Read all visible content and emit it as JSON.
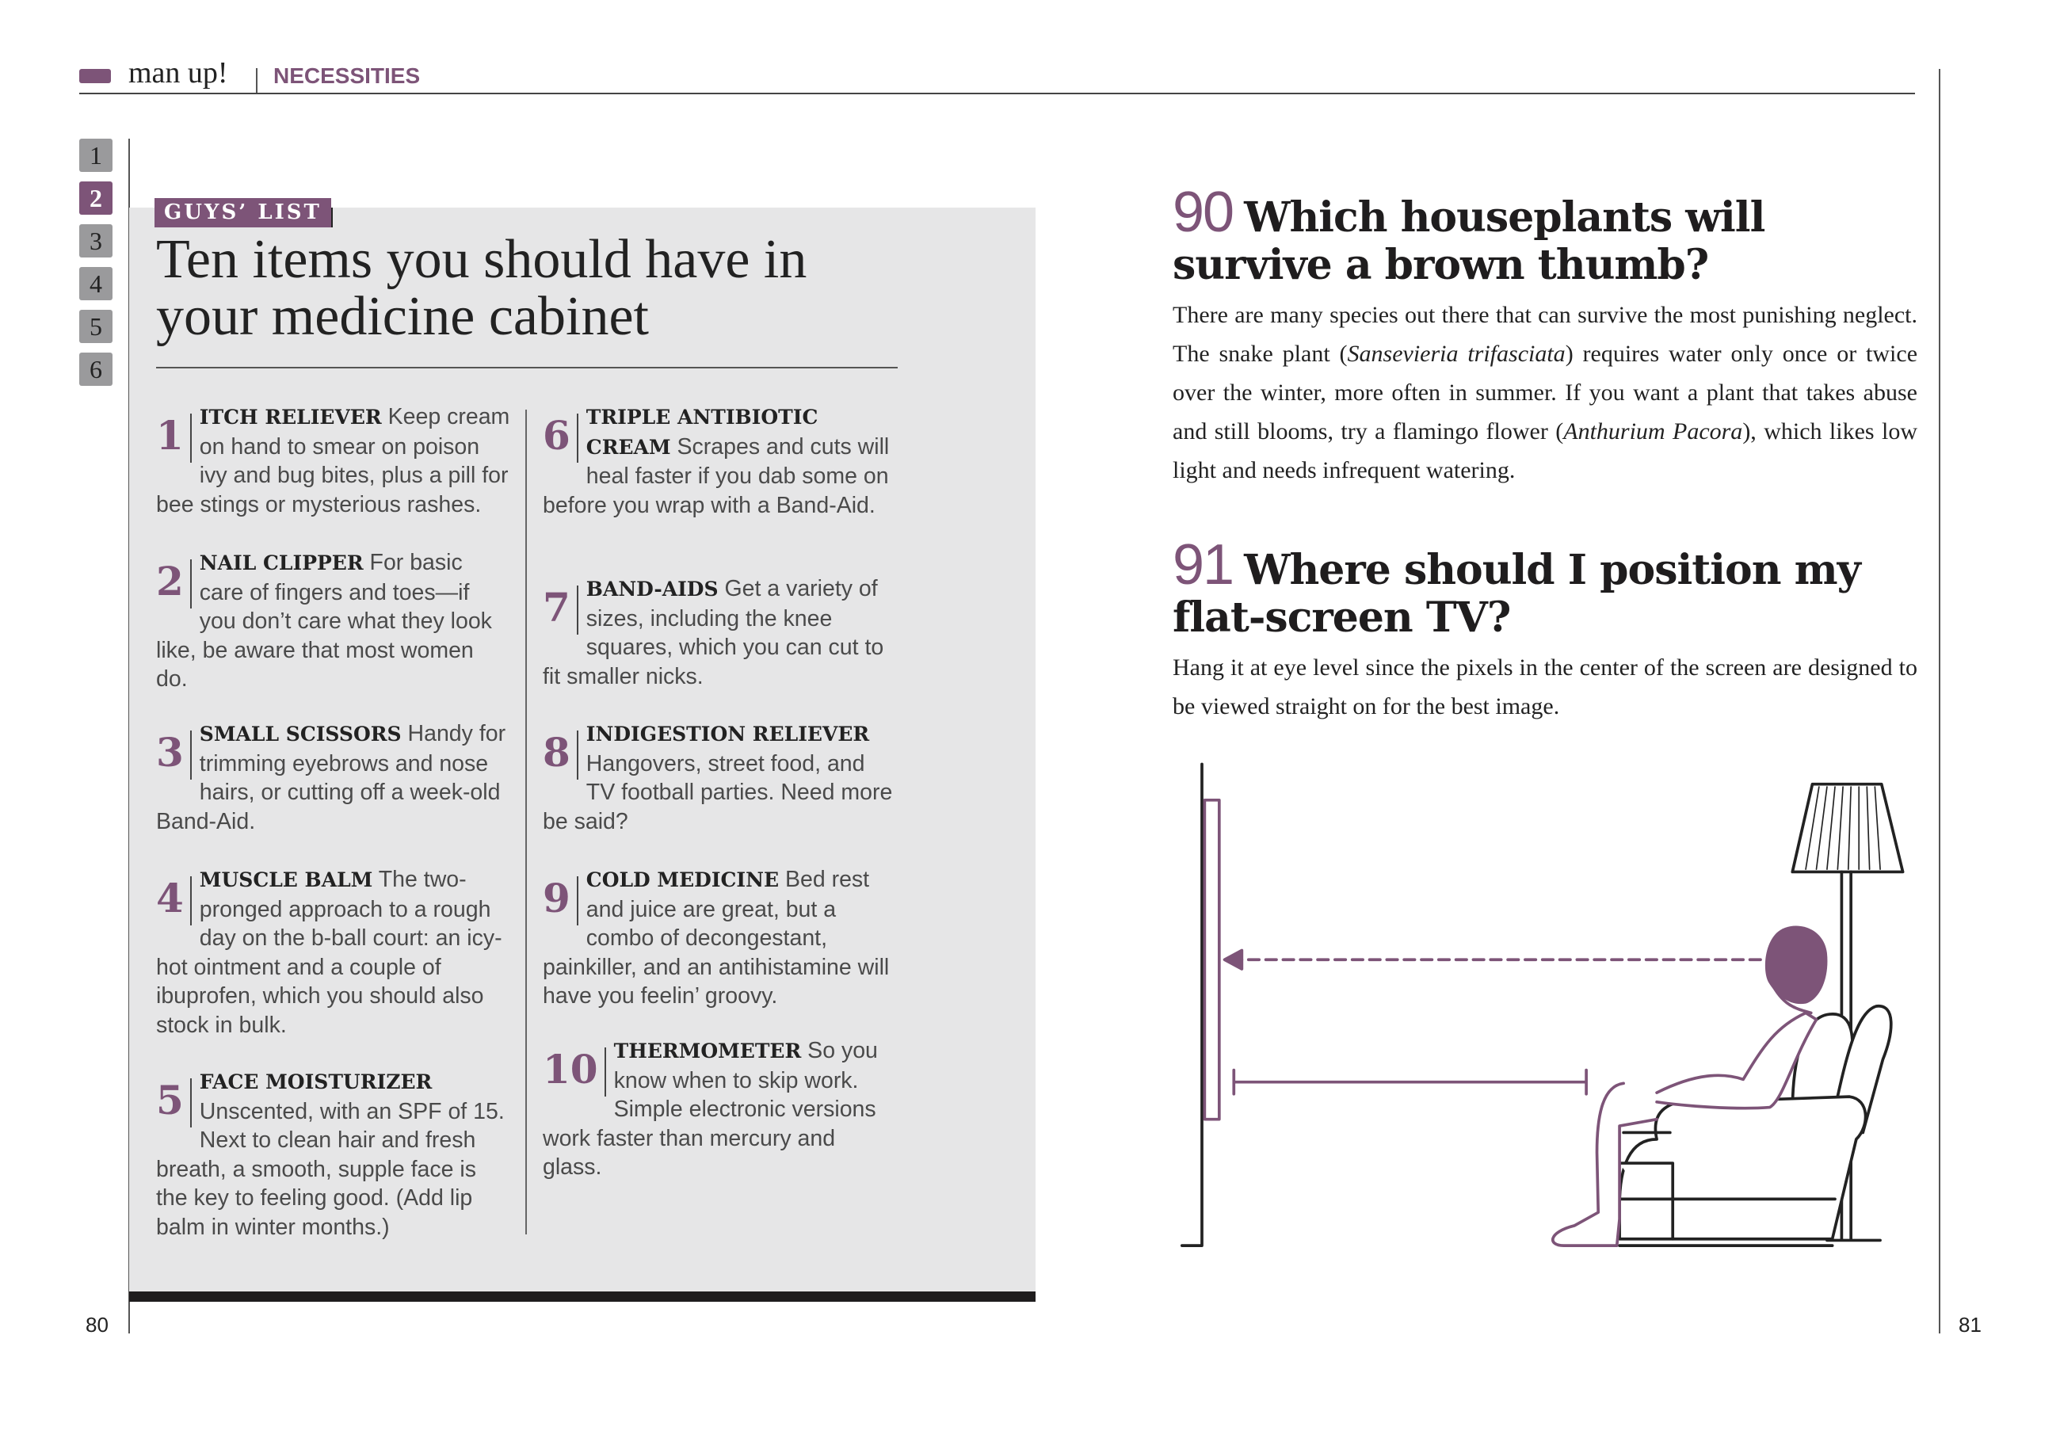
{
  "header": {
    "brand": "man up!",
    "section": "NECESSITIES",
    "accent": "#7d5478"
  },
  "tabs": [
    {
      "label": "1"
    },
    {
      "label": "2",
      "active": true
    },
    {
      "label": "3"
    },
    {
      "label": "4"
    },
    {
      "label": "5"
    },
    {
      "label": "6"
    }
  ],
  "left_page": {
    "tag": "GUYS’ LIST",
    "title": "Ten items you should have in your medicine cabinet",
    "items": [
      {
        "num": "1",
        "label": "ITCH RELIEVER",
        "text": " Keep cream on hand to smear on poison ivy and bug bites, plus a pill for bee stings or mysterious rashes."
      },
      {
        "num": "2",
        "label": "NAIL CLIPPER",
        "text": " For basic care of fingers and toes—if you don’t care what they look like, be aware that most women do."
      },
      {
        "num": "3",
        "label": "SMALL SCISSORS",
        "text": " Handy for trimming eyebrows and nose hairs, or cutting off a week-old Band-Aid."
      },
      {
        "num": "4",
        "label": "MUSCLE BALM",
        "text": " The two-pronged approach to a rough day on the b-ball court: an icy-hot ointment and a couple of ibuprofen, which you should also stock in bulk."
      },
      {
        "num": "5",
        "label": "FACE MOISTURIZER",
        "text": " Unscented, with an SPF of 15. Next to clean hair and fresh breath, a smooth, supple face is the key to feeling good. (Add lip balm in winter months.)"
      },
      {
        "num": "6",
        "label": "TRIPLE ANTIBIOTIC CREAM",
        "text": " Scrapes and cuts will heal faster if you dab some on before you wrap with a Band-Aid."
      },
      {
        "num": "7",
        "label": "BAND-AIDS",
        "text": " Get a variety of sizes, including the knee squares, which you can cut to fit smaller nicks."
      },
      {
        "num": "8",
        "label": "INDIGESTION RELIEVER",
        "text": " Hangovers, street food, and TV football parties. Need more be said?"
      },
      {
        "num": "9",
        "label": "COLD MEDICINE",
        "text": " Bed rest and juice are great, but a combo of decongestant, painkiller, and an antihistamine will have you feelin’ groovy."
      },
      {
        "num": "10",
        "label": "THERMOMETER",
        "text": " So you know when to skip work. Simple electronic versions work faster than mercury and glass."
      }
    ],
    "page_number": "80"
  },
  "right_page": {
    "questions": [
      {
        "num": "90",
        "heading": "Which houseplants will survive a brown thumb?",
        "body": [
          "There are many species out there that can survive the most punishing neglect. The snake plant (",
          {
            "i": "Sansevieria trifasciata"
          },
          ") requires water only once or twice over the winter, more often in summer. If you want a plant that takes abuse and still blooms, try a flamingo flower (",
          {
            "i": "Anthurium Pacora"
          },
          "), which likes low light and needs infrequent watering."
        ]
      },
      {
        "num": "91",
        "heading": "Where should I position my flat-screen TV?",
        "body": [
          "Hang it at eye level since the pixels in the center of the screen are designed to be viewed straight on for the best image."
        ]
      }
    ],
    "page_number": "81"
  }
}
